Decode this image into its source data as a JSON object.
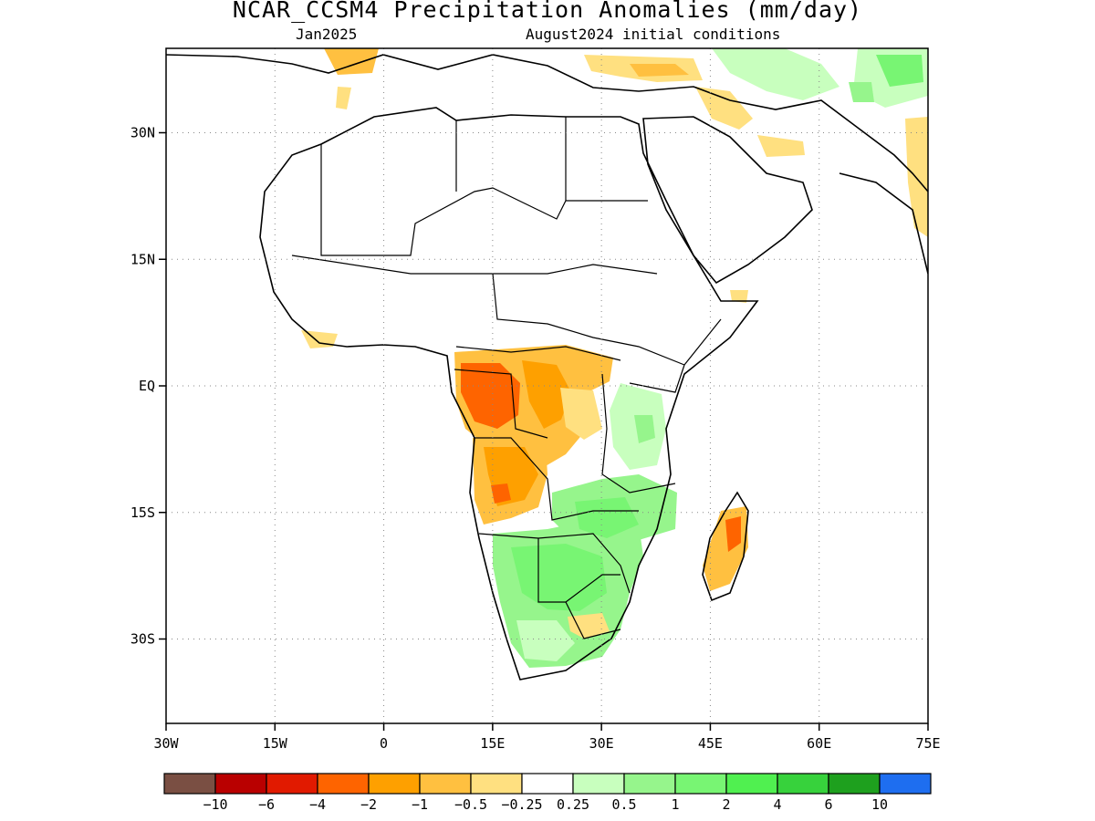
{
  "header": {
    "title": "NCAR_CCSM4 Precipitation Anomalies (mm/day)",
    "forecast_month": "Jan2025",
    "initial_conditions": "August2024 initial conditions"
  },
  "map": {
    "lon_range": [
      -30,
      75
    ],
    "lat_range": [
      -40,
      40
    ],
    "lat_ticks": [
      {
        "value": 30,
        "label": "30N"
      },
      {
        "value": 15,
        "label": "15N"
      },
      {
        "value": 0,
        "label": "EQ"
      },
      {
        "value": -15,
        "label": "15S"
      },
      {
        "value": -30,
        "label": "30S"
      }
    ],
    "lon_ticks": [
      {
        "value": -30,
        "label": "30W"
      },
      {
        "value": -15,
        "label": "15W"
      },
      {
        "value": 0,
        "label": "0"
      },
      {
        "value": 15,
        "label": "15E"
      },
      {
        "value": 30,
        "label": "30E"
      },
      {
        "value": 45,
        "label": "45E"
      },
      {
        "value": 60,
        "label": "60E"
      },
      {
        "value": 75,
        "label": "75E"
      }
    ],
    "gridlines": "dotted",
    "anomaly_regions": [
      {
        "region": "Gabon / Congo",
        "lon": 12,
        "lat": -3,
        "level": -4
      },
      {
        "region": "Central Congo basin",
        "lon": 20,
        "lat": -2,
        "level": -1
      },
      {
        "region": "Angola",
        "lon": 16,
        "lat": -12,
        "level": -1
      },
      {
        "region": "Madagascar",
        "lon": 47,
        "lat": -19,
        "level": -2
      },
      {
        "region": "Southern Africa",
        "lon": 25,
        "lat": -22,
        "level": 1
      },
      {
        "region": "Zambia / Mozambique",
        "lon": 33,
        "lat": -13,
        "level": 1
      },
      {
        "region": "Tanzania / Kenya",
        "lon": 35,
        "lat": -4,
        "level": 0.5
      },
      {
        "region": "Iran / Central Asia",
        "lon": 64,
        "lat": 36,
        "level": 0.5
      },
      {
        "region": "Arabian coast",
        "lon": 50,
        "lat": 28,
        "level": -0.5
      },
      {
        "region": "India west coast",
        "lon": 74,
        "lat": 22,
        "level": -0.5
      }
    ]
  },
  "colorbar": {
    "colors": [
      "#7a4f43",
      "#b90000",
      "#e11a00",
      "#fe6400",
      "#fea000",
      "#ffc040",
      "#ffe080",
      "#ffffff",
      "#c8ffbe",
      "#96f58c",
      "#78f573",
      "#50f050",
      "#37d23c",
      "#1ea01e",
      "#1e6ef0"
    ],
    "labels": [
      "−10",
      "−6",
      "−4",
      "−2",
      "−1",
      "−0.5",
      "−0.25",
      "0.25",
      "0.5",
      "1",
      "2",
      "4",
      "6",
      "10"
    ]
  }
}
